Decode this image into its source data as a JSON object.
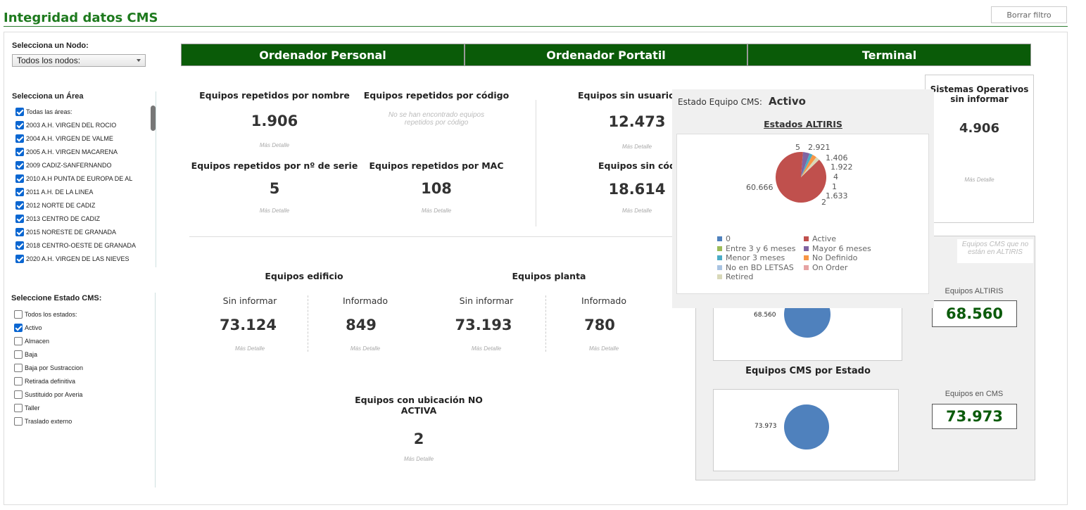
{
  "header": {
    "title": "Integridad datos CMS",
    "clear_filter": "Borrar filtro"
  },
  "colors": {
    "tab_green": "#0a5b08",
    "title_green": "#1e7a1e",
    "accent_blue": "#4f81bd",
    "pie_red": "#c0504d"
  },
  "sidebar": {
    "node_label": "Selecciona un Nodo:",
    "node_value": "Todos los nodos:",
    "area_label": "Selecciona un Área",
    "areas": [
      {
        "label": "Todas las áreas:",
        "checked": true
      },
      {
        "label": "2003 A.H. VIRGEN DEL ROCIO",
        "checked": true
      },
      {
        "label": "2004 A.H. VIRGEN DE VALME",
        "checked": true
      },
      {
        "label": "2005 A.H. VIRGEN MACARENA",
        "checked": true
      },
      {
        "label": "2009 CADIZ-SANFERNANDO",
        "checked": true
      },
      {
        "label": "2010 A.H PUNTA DE EUROPA DE AL",
        "checked": true
      },
      {
        "label": "2011 A.H. DE LA LINEA",
        "checked": true
      },
      {
        "label": "2012 NORTE DE CADIZ",
        "checked": true
      },
      {
        "label": "2013 CENTRO DE CADIZ",
        "checked": true
      },
      {
        "label": "2015 NORESTE DE GRANADA",
        "checked": true
      },
      {
        "label": "2018 CENTRO-OESTE DE GRANADA",
        "checked": true
      },
      {
        "label": "2020 A.H. VIRGEN DE LAS NIEVES",
        "checked": true
      }
    ],
    "estado_label": "Seleccione Estado CMS:",
    "estados": [
      {
        "label": "Todos los estados:",
        "checked": false
      },
      {
        "label": "Activo",
        "checked": true
      },
      {
        "label": "Almacen",
        "checked": false
      },
      {
        "label": "Baja",
        "checked": false
      },
      {
        "label": "Baja por Sustraccion",
        "checked": false
      },
      {
        "label": "Retirada definitiva",
        "checked": false
      },
      {
        "label": "Sustituido por Averia",
        "checked": false
      },
      {
        "label": "Taller",
        "checked": false
      },
      {
        "label": "Traslado externo",
        "checked": false
      }
    ]
  },
  "tabs": [
    "Ordenador Personal",
    "Ordenador Portatil",
    "Terminal"
  ],
  "mas_detalle": "Más Detalle",
  "cards": {
    "rep_nombre": {
      "title": "Equipos repetidos por nombre",
      "value": "1.906"
    },
    "rep_codigo": {
      "title": "Equipos repetidos por código",
      "empty": "No se han encontrado equipos repetidos por código"
    },
    "rep_serie": {
      "title": "Equipos repetidos por nº de serie",
      "value": "5"
    },
    "rep_mac": {
      "title": "Equipos repetidos por MAC",
      "value": "108"
    },
    "sin_usuario": {
      "title": "Equipos sin usuario ha",
      "value": "12.473"
    },
    "sin_codigo": {
      "title": "Equipos sin códig",
      "value": "18.614"
    },
    "so": {
      "title": "Sistemas Operativos sin informar",
      "value": "4.906"
    },
    "edificio": {
      "title": "Equipos edificio",
      "sin_label": "Sin informar",
      "sin_value": "73.124",
      "inf_label": "Informado",
      "inf_value": "849"
    },
    "planta": {
      "title": "Equipos planta",
      "sin_label": "Sin informar",
      "sin_value": "73.193",
      "inf_label": "Informado",
      "inf_value": "780"
    },
    "ubicacion": {
      "title": "Equipos con ubicación NO ACTIVA",
      "value": "2"
    }
  },
  "right_panel": {
    "not_in_altiris": "Equipos CMS que no están en ALTIRIS",
    "altiris_label": "Equipos ALTIRIS",
    "altiris_value": "68.560",
    "pie1_label": "68.560",
    "cms_estado_title": "Equipos CMS por Estado",
    "pie2_label": "73.973",
    "cms_label": "Equipos en CMS",
    "cms_value": "73.973"
  },
  "tooltip": {
    "estado_label": "Estado Equipo CMS:",
    "estado_value": "Activo",
    "chart_title": "Estados ALTIRIS"
  },
  "chart_data": {
    "type": "pie",
    "title": "Estados ALTIRIS",
    "categories": [
      "0",
      "Active",
      "Entre 3 y 6 meses",
      "Mayor 6 meses",
      "Menor 3 meses",
      "No Definido",
      "No en BD LETSAS",
      "On Order",
      "Retired"
    ],
    "values": [
      5,
      60666,
      2,
      2921,
      1406,
      1922,
      4,
      1,
      1633
    ],
    "colors": [
      "#4f81bd",
      "#c0504d",
      "#9bbb59",
      "#8064a2",
      "#4bacc6",
      "#f79646",
      "#a9c4e2",
      "#e6a3a3",
      "#d9d9b9"
    ],
    "legend": "bottom",
    "slice_labels": [
      "5",
      "2.921",
      "1.406",
      "1.922",
      "4",
      "1",
      "1.633",
      "2",
      "60.666"
    ]
  }
}
